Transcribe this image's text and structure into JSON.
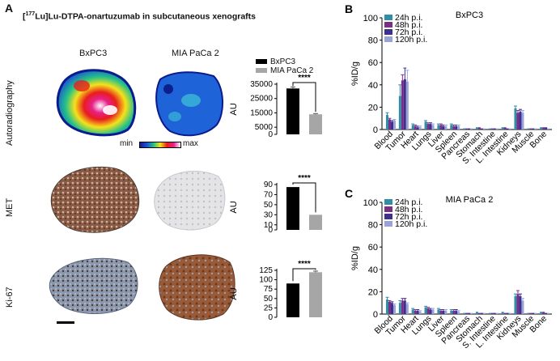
{
  "panel_a": {
    "letter": "A",
    "title_prefix": "[",
    "title_isotope_mass": "177",
    "title_rest": "Lu]Lu-DTPA-onartuzumab in subcutaneous xenografts",
    "col1": "BxPC3",
    "col2": "MIA PaCa 2",
    "rows": [
      "Autoradiography",
      "MET",
      "Ki-67"
    ],
    "colorbar": {
      "min": "min",
      "max": "max"
    }
  },
  "colors": {
    "bxpc3_bar": "#000000",
    "mia_bar": "#a6a6a6",
    "s24": "#2f8fa8",
    "s48": "#7a2f86",
    "s72": "#3f2f8f",
    "s120": "#9aa3d8"
  },
  "chart_data": [
    {
      "id": "auto",
      "type": "bar",
      "ylabel": "AU",
      "categories": [
        "BxPC3",
        "MIA PaCa 2"
      ],
      "values": [
        32000,
        14000
      ],
      "errors": [
        1000,
        500
      ],
      "ylim": [
        0,
        35000
      ],
      "ticks": [
        0,
        5000,
        15000,
        25000,
        35000
      ],
      "tick_labels": [
        "0",
        "5000",
        "15000",
        "25000",
        "35000"
      ],
      "significance": "****",
      "legend": [
        "BxPC3",
        "MIA PaCa 2"
      ]
    },
    {
      "id": "met",
      "type": "bar",
      "ylabel": "AU",
      "categories": [
        "BxPC3",
        "MIA PaCa 2"
      ],
      "values": [
        85,
        30
      ],
      "errors": [
        0,
        0
      ],
      "ylim": [
        0,
        90
      ],
      "ticks": [
        0,
        10,
        30,
        50,
        70,
        90
      ],
      "tick_labels": [
        "0",
        "10",
        "30",
        "50",
        "70",
        "90"
      ],
      "significance": "****"
    },
    {
      "id": "ki67",
      "type": "bar",
      "ylabel": "AU",
      "categories": [
        "BxPC3",
        "MIA PaCa 2"
      ],
      "values": [
        90,
        120
      ],
      "errors": [
        0,
        3
      ],
      "ylim": [
        0,
        125
      ],
      "ticks": [
        0,
        25,
        50,
        75,
        100,
        125
      ],
      "tick_labels": [
        "0",
        "25",
        "50",
        "75",
        "100",
        "125"
      ],
      "significance": "****"
    },
    {
      "id": "B",
      "letter": "B",
      "type": "bar",
      "title": "BxPC3",
      "ylabel": "%ID/g",
      "ylim": [
        0,
        100
      ],
      "ticks": [
        0,
        20,
        40,
        60,
        80,
        100
      ],
      "tick_labels": [
        "0",
        "20",
        "40",
        "60",
        "80",
        "100"
      ],
      "categories": [
        "Blood",
        "Tumor",
        "Heart",
        "Lungs",
        "Liver",
        "Spleen",
        "Pancreas",
        "Stomach",
        "S. Intestine",
        "L. Intestine",
        "Kidneys",
        "Muscle",
        "Bone"
      ],
      "series": [
        {
          "name": "24h p.i.",
          "values": [
            13,
            30,
            4,
            7,
            4,
            4,
            1,
            2,
            1,
            2,
            19,
            1,
            2
          ],
          "errors": [
            2,
            10,
            1,
            1,
            1,
            1,
            0,
            0,
            0,
            0,
            2,
            0,
            0
          ]
        },
        {
          "name": "48h p.i.",
          "values": [
            9,
            44,
            3,
            5,
            4,
            3,
            1,
            2,
            1,
            2,
            15,
            1,
            2
          ],
          "errors": [
            1,
            5,
            1,
            1,
            1,
            1,
            0,
            0,
            0,
            0,
            2,
            0,
            0
          ]
        },
        {
          "name": "72h p.i.",
          "values": [
            7,
            45,
            2,
            5,
            3,
            3,
            1,
            1,
            1,
            1,
            16,
            1,
            2
          ],
          "errors": [
            1,
            10,
            1,
            1,
            1,
            1,
            0,
            0,
            0,
            0,
            2,
            0,
            0
          ]
        },
        {
          "name": "120h p.i.",
          "values": [
            8,
            43,
            2,
            4,
            3,
            3,
            1,
            1,
            1,
            1,
            15,
            1,
            1
          ],
          "errors": [
            1,
            10,
            1,
            1,
            1,
            1,
            0,
            0,
            0,
            0,
            2,
            0,
            0
          ]
        }
      ]
    },
    {
      "id": "C",
      "letter": "C",
      "type": "bar",
      "title": "MIA PaCa 2",
      "ylabel": "%ID/g",
      "ylim": [
        0,
        100
      ],
      "ticks": [
        0,
        20,
        40,
        60,
        80,
        100
      ],
      "tick_labels": [
        "0",
        "20",
        "40",
        "60",
        "80",
        "100"
      ],
      "categories": [
        "Blood",
        "Tumor",
        "Heart",
        "Lungs",
        "Liver",
        "Spleen",
        "Pancreas",
        "Stomach",
        "S. Intestine",
        "L. Intestine",
        "Kidneys",
        "Muscle",
        "Bone"
      ],
      "series": [
        {
          "name": "24h p.i.",
          "values": [
            13,
            10,
            4,
            6,
            4,
            3,
            1,
            2,
            1,
            2,
            16,
            1,
            2
          ],
          "errors": [
            2,
            2,
            1,
            1,
            1,
            1,
            0,
            0,
            0,
            0,
            2,
            0,
            0
          ]
        },
        {
          "name": "48h p.i.",
          "values": [
            11,
            12,
            3,
            5,
            3,
            3,
            1,
            1,
            1,
            1,
            18,
            1,
            2
          ],
          "errors": [
            1,
            2,
            1,
            1,
            1,
            1,
            0,
            0,
            0,
            0,
            3,
            0,
            0
          ]
        },
        {
          "name": "72h p.i.",
          "values": [
            10,
            12,
            3,
            4,
            3,
            3,
            1,
            1,
            1,
            1,
            16,
            1,
            1
          ],
          "errors": [
            1,
            2,
            1,
            1,
            1,
            1,
            0,
            0,
            0,
            0,
            2,
            0,
            0
          ]
        },
        {
          "name": "120h p.i.",
          "values": [
            8,
            9,
            2,
            4,
            3,
            2,
            1,
            1,
            1,
            1,
            12,
            1,
            1
          ],
          "errors": [
            1,
            1,
            1,
            1,
            1,
            1,
            0,
            0,
            0,
            0,
            2,
            0,
            0
          ]
        }
      ]
    }
  ]
}
